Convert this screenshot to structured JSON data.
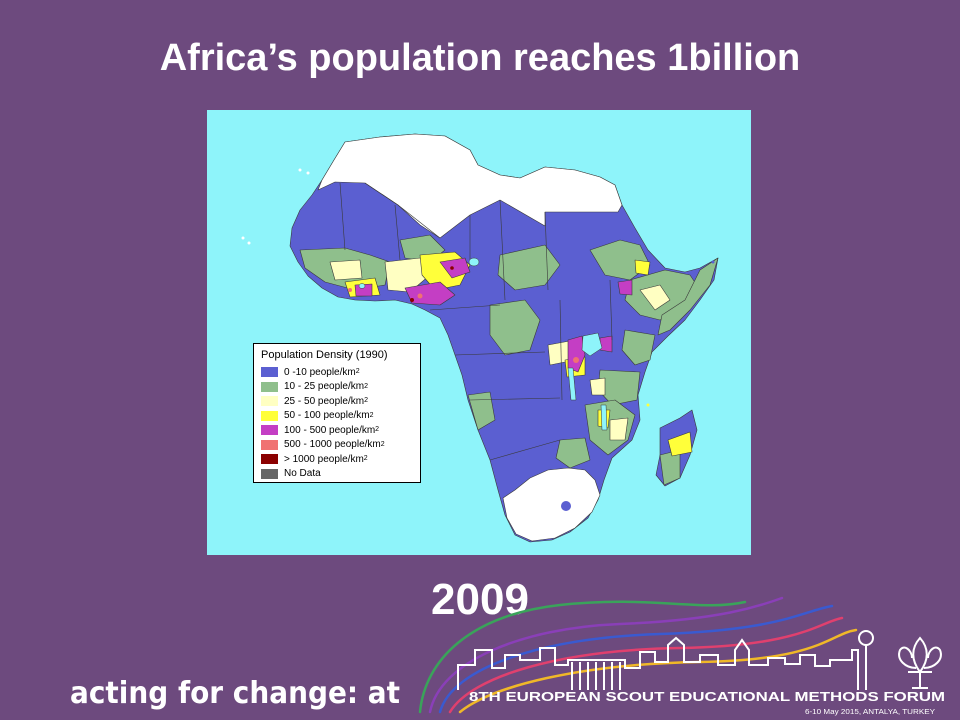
{
  "slide": {
    "title": "Africa’s population reaches 1billion",
    "year": "2009",
    "background_color": "#6d4a7e"
  },
  "map": {
    "ocean_color": "#8ef4fa",
    "legend": {
      "title": "Population Density (1990)",
      "items": [
        {
          "label": "0 -10 people/km",
          "sup": "2",
          "color": "#5b5fd1"
        },
        {
          "label": "10 - 25 people/km",
          "sup": "2",
          "color": "#8fbf8c"
        },
        {
          "label": "25 - 50 people/km",
          "sup": "2",
          "color": "#ffffc2"
        },
        {
          "label": "50 - 100 people/km",
          "sup": "2",
          "color": "#ffff3a"
        },
        {
          "label": "100 - 500 people/km",
          "sup": "2",
          "color": "#c43ec4"
        },
        {
          "label": "500 - 1000 people/km",
          "sup": "2",
          "color": "#f07272"
        },
        {
          "label": "> 1000 people/km",
          "sup": "2",
          "color": "#8b0000"
        },
        {
          "label": "No Data",
          "sup": "",
          "color": "#666666"
        }
      ]
    }
  },
  "footer": {
    "left_logo_text": "acting for change: at",
    "right_logo_text": "8TH EUROPEAN SCOUT EDUCATIONAL METHODS FORUM",
    "right_logo_subtext": "6-10 May 2015, ANTALYA, TURKEY"
  }
}
